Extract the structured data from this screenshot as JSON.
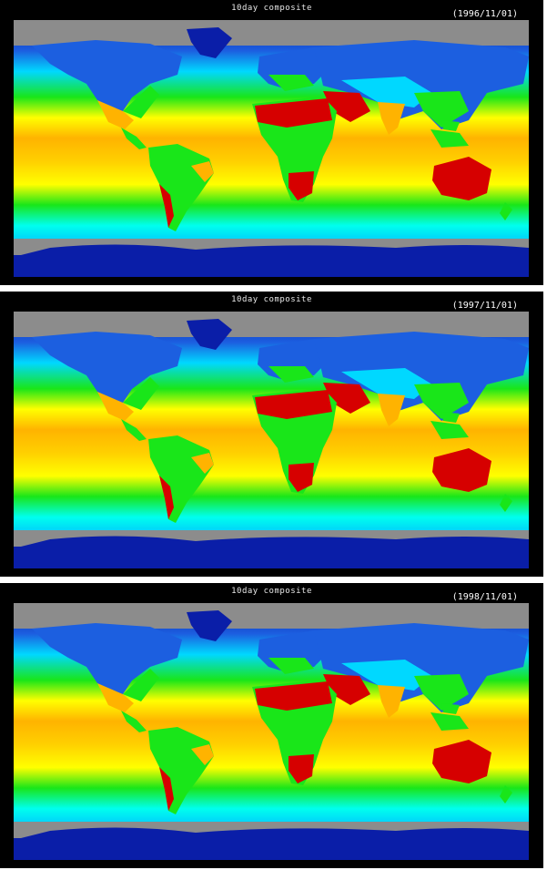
{
  "panels": [
    {
      "title": "10day composite",
      "date": "(1996/11/01)"
    },
    {
      "title": "10day composite",
      "date": "(1997/11/01)"
    },
    {
      "title": "10day composite",
      "date": "(1998/11/01)"
    }
  ],
  "colors": {
    "background": "#000000",
    "no_data": "#8c8c8c",
    "low": "#0a1ea8",
    "mid_low": "#00d8ff",
    "mid": "#19e619",
    "mid_high": "#ffff00",
    "high": "#ffa200",
    "max": "#d60000"
  }
}
